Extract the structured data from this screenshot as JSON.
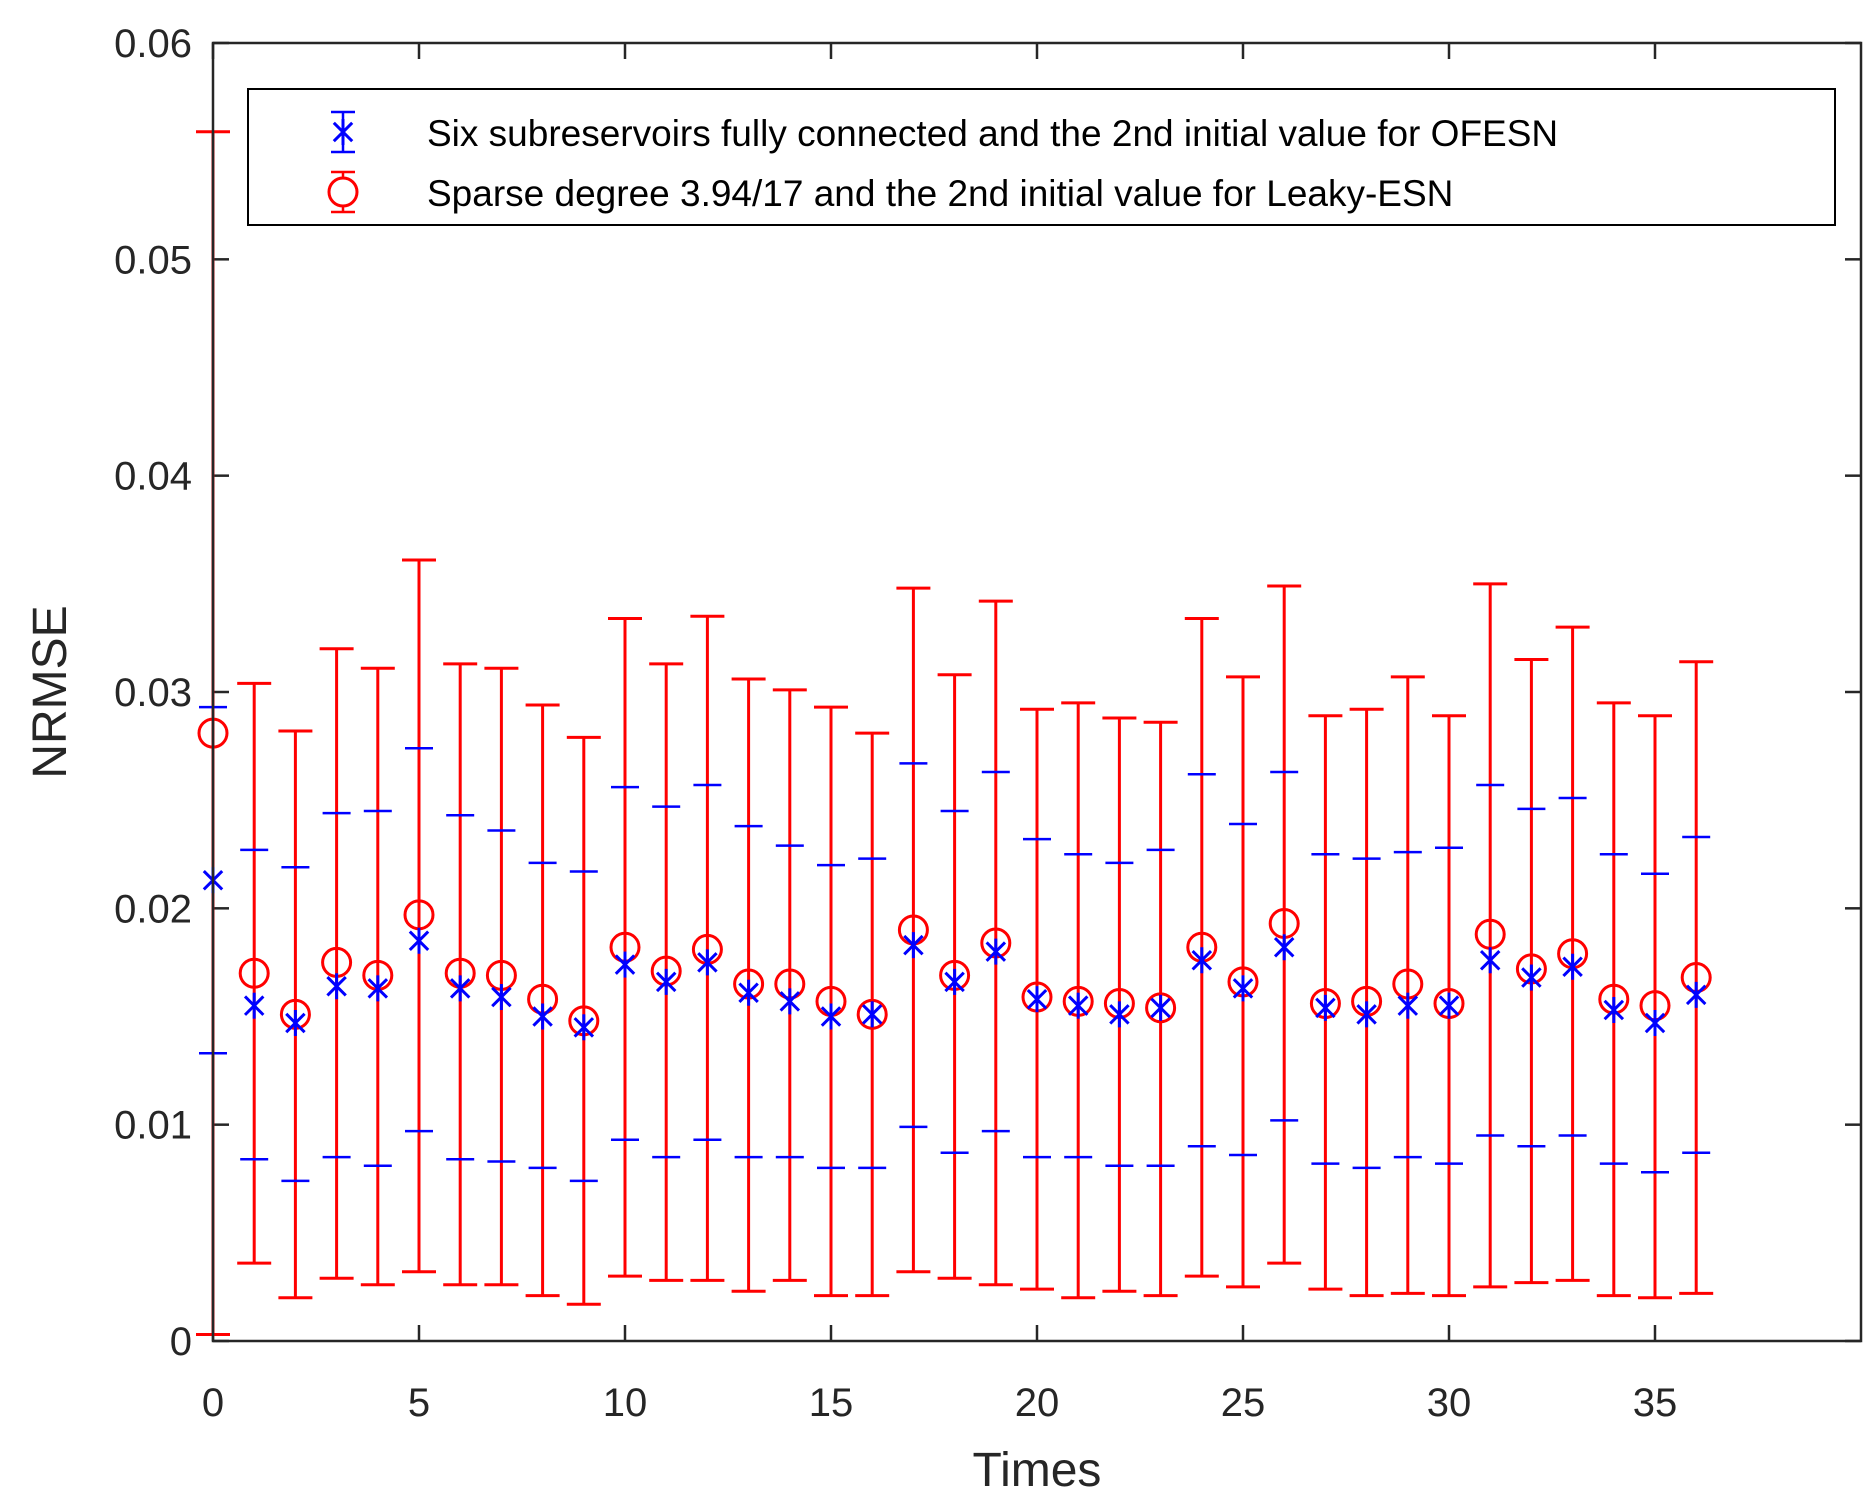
{
  "chart_data": {
    "type": "errorbar",
    "xlabel": "Times",
    "ylabel": "NRMSE",
    "xlim": [
      0,
      40
    ],
    "ylim": [
      0,
      0.06
    ],
    "xticks": [
      0,
      5,
      10,
      15,
      20,
      25,
      30,
      35
    ],
    "xtick_labels": [
      "0",
      "5",
      "10",
      "15",
      "20",
      "25",
      "30",
      "35"
    ],
    "yticks": [
      0,
      0.01,
      0.02,
      0.03,
      0.04,
      0.05,
      0.06
    ],
    "ytick_labels": [
      "0",
      "0.01",
      "0.02",
      "0.03",
      "0.04",
      "0.05",
      "0.06"
    ],
    "legend_position": "top",
    "x": [
      0,
      1,
      2,
      3,
      4,
      5,
      6,
      7,
      8,
      9,
      10,
      11,
      12,
      13,
      14,
      15,
      16,
      17,
      18,
      19,
      20,
      21,
      22,
      23,
      24,
      25,
      26,
      27,
      28,
      29,
      30,
      31,
      32,
      33,
      34,
      35,
      36
    ],
    "series": [
      {
        "name": "Six subreservoirs fully connected and the 2nd initial value for OFESN",
        "color": "#0000ff",
        "marker": "asterisk",
        "values": [
          0.0213,
          0.0155,
          0.0147,
          0.0164,
          0.0163,
          0.0185,
          0.0163,
          0.0159,
          0.015,
          0.0145,
          0.0174,
          0.0166,
          0.0175,
          0.0161,
          0.0157,
          0.015,
          0.0151,
          0.0183,
          0.0166,
          0.018,
          0.0158,
          0.0155,
          0.0151,
          0.0154,
          0.0176,
          0.0163,
          0.0182,
          0.0154,
          0.0151,
          0.0155,
          0.0155,
          0.0176,
          0.0168,
          0.0173,
          0.0153,
          0.0147,
          0.016
        ],
        "lower": [
          0.0133,
          0.0084,
          0.0074,
          0.0085,
          0.0081,
          0.0097,
          0.0084,
          0.0083,
          0.008,
          0.0074,
          0.0093,
          0.0085,
          0.0093,
          0.0085,
          0.0085,
          0.008,
          0.008,
          0.0099,
          0.0087,
          0.0097,
          0.0085,
          0.0085,
          0.0081,
          0.0081,
          0.009,
          0.0086,
          0.0102,
          0.0082,
          0.008,
          0.0085,
          0.0082,
          0.0095,
          0.009,
          0.0095,
          0.0082,
          0.0078,
          0.0087
        ],
        "upper": [
          0.0293,
          0.0227,
          0.0219,
          0.0244,
          0.0245,
          0.0274,
          0.0243,
          0.0236,
          0.0221,
          0.0217,
          0.0256,
          0.0247,
          0.0257,
          0.0238,
          0.0229,
          0.022,
          0.0223,
          0.0267,
          0.0245,
          0.0263,
          0.0232,
          0.0225,
          0.0221,
          0.0227,
          0.0262,
          0.0239,
          0.0263,
          0.0225,
          0.0223,
          0.0226,
          0.0228,
          0.0257,
          0.0246,
          0.0251,
          0.0225,
          0.0216,
          0.0233
        ]
      },
      {
        "name": "Sparse degree 3.94/17  and the 2nd initial value for Leaky-ESN",
        "color": "#ff0000",
        "marker": "circle",
        "values": [
          0.0281,
          0.017,
          0.0151,
          0.0175,
          0.0169,
          0.0197,
          0.017,
          0.0169,
          0.0158,
          0.0148,
          0.0182,
          0.0171,
          0.0181,
          0.0165,
          0.0165,
          0.0157,
          0.0151,
          0.019,
          0.0169,
          0.0184,
          0.0159,
          0.0157,
          0.0156,
          0.0154,
          0.0182,
          0.0166,
          0.0193,
          0.0156,
          0.0157,
          0.0165,
          0.0156,
          0.0188,
          0.0172,
          0.0179,
          0.0158,
          0.0155,
          0.0168
        ],
        "lower": [
          0.0003,
          0.0036,
          0.002,
          0.0029,
          0.0026,
          0.0032,
          0.0026,
          0.0026,
          0.0021,
          0.0017,
          0.003,
          0.0028,
          0.0028,
          0.0023,
          0.0028,
          0.0021,
          0.0021,
          0.0032,
          0.0029,
          0.0026,
          0.0024,
          0.002,
          0.0023,
          0.0021,
          0.003,
          0.0025,
          0.0036,
          0.0024,
          0.0021,
          0.0022,
          0.0021,
          0.0025,
          0.0027,
          0.0028,
          0.0021,
          0.002,
          0.0022
        ],
        "upper": [
          0.0559,
          0.0304,
          0.0282,
          0.032,
          0.0311,
          0.0361,
          0.0313,
          0.0311,
          0.0294,
          0.0279,
          0.0334,
          0.0313,
          0.0335,
          0.0306,
          0.0301,
          0.0293,
          0.0281,
          0.0348,
          0.0308,
          0.0342,
          0.0292,
          0.0295,
          0.0288,
          0.0286,
          0.0334,
          0.0307,
          0.0349,
          0.0289,
          0.0292,
          0.0307,
          0.0289,
          0.035,
          0.0315,
          0.033,
          0.0295,
          0.0289,
          0.0314
        ]
      }
    ]
  }
}
